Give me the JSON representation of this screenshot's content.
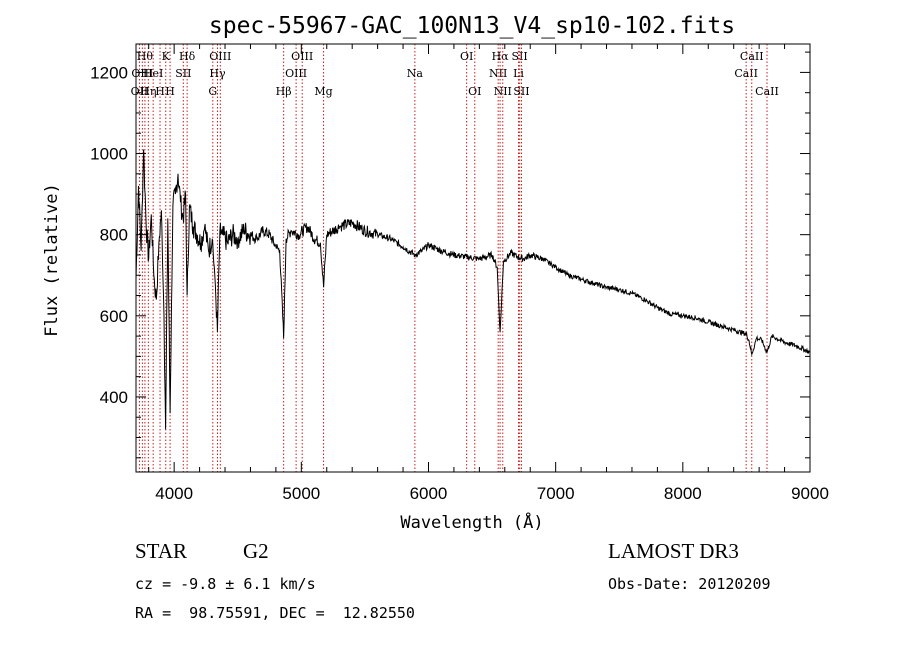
{
  "chart_data": {
    "type": "line",
    "title": "spec-55967-GAC_100N13_V4_sp10-102.fits",
    "xlabel": "Wavelength (Å)",
    "ylabel": "Flux (relative)",
    "xlim": [
      3700,
      9000
    ],
    "ylim": [
      215,
      1270
    ],
    "xticks": [
      4000,
      5000,
      6000,
      7000,
      8000,
      9000
    ],
    "yticks": [
      400,
      600,
      800,
      1000,
      1200
    ],
    "grid": false,
    "series": [
      {
        "name": "spectrum",
        "x": [
          3700,
          3720,
          3740,
          3760,
          3780,
          3800,
          3820,
          3840,
          3860,
          3880,
          3900,
          3920,
          3933,
          3950,
          3968,
          3990,
          4010,
          4030,
          4050,
          4070,
          4090,
          4102,
          4120,
          4150,
          4180,
          4210,
          4240,
          4270,
          4300,
          4320,
          4340,
          4360,
          4380,
          4420,
          4460,
          4500,
          4550,
          4600,
          4650,
          4700,
          4750,
          4800,
          4830,
          4861,
          4880,
          4920,
          4980,
          5050,
          5100,
          5150,
          5175,
          5200,
          5250,
          5300,
          5400,
          5500,
          5600,
          5700,
          5800,
          5893,
          5950,
          6000,
          6100,
          6200,
          6300,
          6400,
          6500,
          6540,
          6563,
          6590,
          6650,
          6700,
          6750,
          6800,
          6850,
          6900,
          7000,
          7100,
          7200,
          7300,
          7400,
          7500,
          7600,
          7700,
          7800,
          7900,
          8000,
          8100,
          8200,
          8300,
          8400,
          8498,
          8520,
          8542,
          8580,
          8620,
          8662,
          8700,
          8800,
          8900,
          9000
        ],
        "y": [
          690,
          920,
          760,
          1010,
          820,
          740,
          850,
          700,
          640,
          780,
          860,
          600,
          320,
          840,
          360,
          870,
          900,
          950,
          880,
          840,
          900,
          650,
          870,
          820,
          800,
          780,
          820,
          760,
          790,
          700,
          560,
          810,
          800,
          780,
          800,
          790,
          810,
          800,
          790,
          810,
          800,
          770,
          760,
          545,
          790,
          810,
          800,
          820,
          790,
          780,
          670,
          800,
          810,
          820,
          830,
          810,
          800,
          790,
          770,
          750,
          760,
          775,
          760,
          750,
          745,
          740,
          750,
          720,
          560,
          735,
          755,
          745,
          740,
          750,
          745,
          740,
          720,
          700,
          690,
          680,
          670,
          665,
          655,
          640,
          620,
          605,
          600,
          595,
          585,
          575,
          565,
          555,
          540,
          505,
          545,
          540,
          510,
          550,
          535,
          525,
          510
        ]
      }
    ],
    "lines": [
      {
        "wavelength": 3727,
        "label": "OII",
        "row": 2
      },
      {
        "wavelength": 3750,
        "label": "OIII",
        "row": 1
      },
      {
        "wavelength": 3770,
        "label": "Hθ",
        "row": 0
      },
      {
        "wavelength": 3797,
        "label": "Hη",
        "row": 2
      },
      {
        "wavelength": 3835,
        "label": "HeI",
        "row": 1
      },
      {
        "wavelength": 3889,
        "label": "H",
        "row": 2
      },
      {
        "wavelength": 3934,
        "label": "K",
        "row": 0
      },
      {
        "wavelength": 3968,
        "label": "H",
        "row": 2
      },
      {
        "wavelength": 4072,
        "label": "SII",
        "row": 1
      },
      {
        "wavelength": 4102,
        "label": "Hδ",
        "row": 0
      },
      {
        "wavelength": 4304,
        "label": "G",
        "row": 2
      },
      {
        "wavelength": 4341,
        "label": "Hγ",
        "row": 1
      },
      {
        "wavelength": 4363,
        "label": "OIII",
        "row": 0
      },
      {
        "wavelength": 4861,
        "label": "Hβ",
        "row": 2
      },
      {
        "wavelength": 4959,
        "label": "OIII",
        "row": 1
      },
      {
        "wavelength": 5007,
        "label": "OIII",
        "row": 0
      },
      {
        "wavelength": 5175,
        "label": "Mg",
        "row": 2
      },
      {
        "wavelength": 5893,
        "label": "Na",
        "row": 1
      },
      {
        "wavelength": 6300,
        "label": "OI",
        "row": 0
      },
      {
        "wavelength": 6364,
        "label": "OI",
        "row": 2
      },
      {
        "wavelength": 6548,
        "label": "NII",
        "row": 1
      },
      {
        "wavelength": 6563,
        "label": "Hα",
        "row": 0
      },
      {
        "wavelength": 6584,
        "label": "NII",
        "row": 2
      },
      {
        "wavelength": 6708,
        "label": "Li",
        "row": 1
      },
      {
        "wavelength": 6717,
        "label": "SII",
        "row": 0
      },
      {
        "wavelength": 6731,
        "label": "SII",
        "row": 2
      },
      {
        "wavelength": 8498,
        "label": "CaII",
        "row": 1
      },
      {
        "wavelength": 8542,
        "label": "CaII",
        "row": 0
      },
      {
        "wavelength": 8662,
        "label": "CaII",
        "row": 2
      }
    ]
  },
  "info": {
    "class": "STAR",
    "subclass": "G2",
    "survey": "LAMOST DR3",
    "cz": "cz = -9.8 ± 6.1 km/s",
    "obs_date": "Obs-Date: 20120209",
    "coords": "RA =  98.75591, DEC =  12.82550"
  },
  "colors": {
    "line_marker": "#c81e1e",
    "spectrum": "#000000"
  }
}
